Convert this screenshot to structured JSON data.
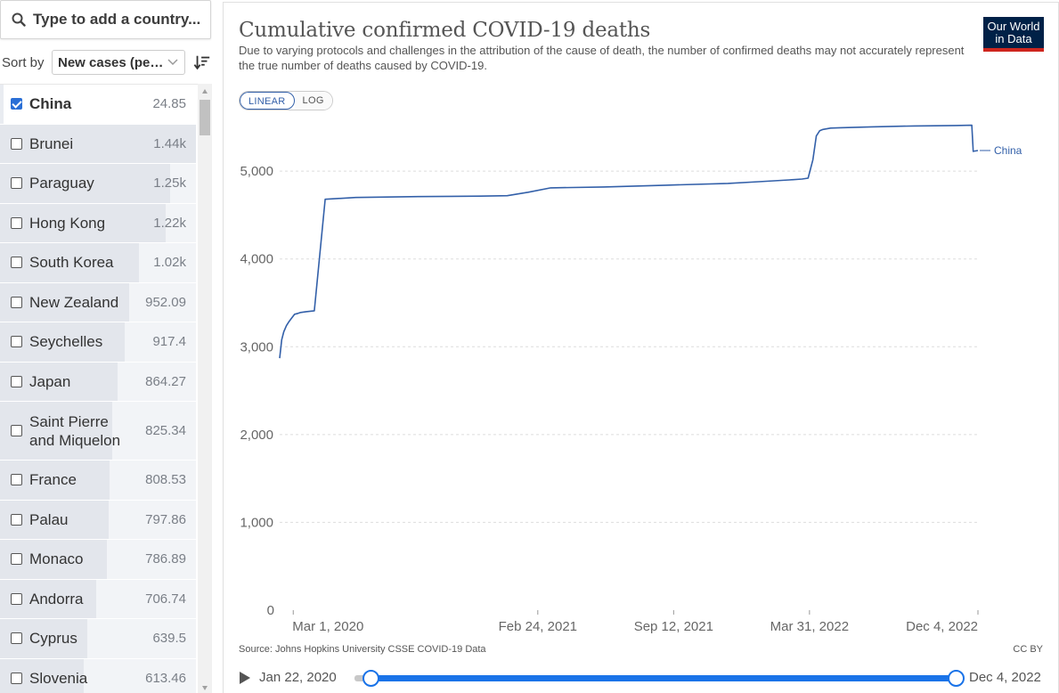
{
  "search": {
    "placeholder": "Type to add a country..."
  },
  "sort": {
    "label": "Sort by",
    "selected": "New cases (pe…"
  },
  "countries": [
    {
      "name": "China",
      "value": "24.85",
      "share": 0.0172,
      "checked": true
    },
    {
      "name": "Brunei",
      "value": "1.44k",
      "share": 1.0,
      "checked": false
    },
    {
      "name": "Paraguay",
      "value": "1.25k",
      "share": 0.868,
      "checked": false
    },
    {
      "name": "Hong Kong",
      "value": "1.22k",
      "share": 0.847,
      "checked": false
    },
    {
      "name": "South Korea",
      "value": "1.02k",
      "share": 0.708,
      "checked": false
    },
    {
      "name": "New Zealand",
      "value": "952.09",
      "share": 0.661,
      "checked": false
    },
    {
      "name": "Seychelles",
      "value": "917.4",
      "share": 0.637,
      "checked": false
    },
    {
      "name": "Japan",
      "value": "864.27",
      "share": 0.6,
      "checked": false
    },
    {
      "name": "Saint Pierre and Miquelon",
      "value": "825.34",
      "share": 0.573,
      "checked": false
    },
    {
      "name": "France",
      "value": "808.53",
      "share": 0.561,
      "checked": false
    },
    {
      "name": "Palau",
      "value": "797.86",
      "share": 0.554,
      "checked": false
    },
    {
      "name": "Monaco",
      "value": "786.89",
      "share": 0.546,
      "checked": false
    },
    {
      "name": "Andorra",
      "value": "706.74",
      "share": 0.491,
      "checked": false
    },
    {
      "name": "Cyprus",
      "value": "639.5",
      "share": 0.444,
      "checked": false
    },
    {
      "name": "Slovenia",
      "value": "613.46",
      "share": 0.426,
      "checked": false
    }
  ],
  "chart": {
    "title": "Cumulative confirmed COVID-19 deaths",
    "subtitle": "Due to varying protocols and challenges in the attribution of the cause of death, the number of confirmed deaths may not accurately represent the true number of deaths caused by COVID-19.",
    "logo_line1": "Our World",
    "logo_line2": "in Data",
    "scale_linear": "LINEAR",
    "scale_log": "LOG",
    "source": "Source: Johns Hopkins University CSSE COVID-19 Data",
    "license": "CC BY"
  },
  "chart_data": {
    "type": "line",
    "title": "Cumulative confirmed COVID-19 deaths",
    "xlabel": "",
    "ylabel": "",
    "ylim": [
      0,
      5600
    ],
    "yticks": [
      0,
      1000,
      2000,
      3000,
      4000,
      5000
    ],
    "ytick_labels": [
      "0",
      "1,000",
      "2,000",
      "3,000",
      "4,000",
      "5,000"
    ],
    "xlim": [
      "2020-02-10",
      "2022-12-04"
    ],
    "xticks": [
      "2020-03-01",
      "2021-02-24",
      "2021-09-12",
      "2022-03-31",
      "2022-12-04"
    ],
    "xtick_labels": [
      "Mar 1, 2020",
      "Feb 24, 2021",
      "Sep 12, 2021",
      "Mar 31, 2022",
      "Dec 4, 2022"
    ],
    "grid": true,
    "series": [
      {
        "name": "China",
        "color": "#3360a9",
        "x": [
          "2020-02-10",
          "2020-02-13",
          "2020-02-16",
          "2020-02-20",
          "2020-02-24",
          "2020-02-28",
          "2020-03-03",
          "2020-03-08",
          "2020-03-12",
          "2020-03-20",
          "2020-04-01",
          "2020-04-17",
          "2020-06-01",
          "2020-09-01",
          "2020-12-01",
          "2021-01-10",
          "2021-01-25",
          "2021-02-10",
          "2021-03-15",
          "2021-06-01",
          "2021-09-01",
          "2021-12-01",
          "2022-01-15",
          "2022-03-01",
          "2022-03-20",
          "2022-03-29",
          "2022-04-05",
          "2022-04-10",
          "2022-04-15",
          "2022-04-20",
          "2022-05-01",
          "2022-05-15",
          "2022-07-01",
          "2022-09-01",
          "2022-11-01",
          "2022-11-25",
          "2022-11-27",
          "2022-11-30",
          "2022-12-04"
        ],
        "y": [
          2870,
          3080,
          3170,
          3240,
          3290,
          3330,
          3370,
          3380,
          3390,
          3400,
          3410,
          4680,
          4700,
          4710,
          4715,
          4720,
          4740,
          4760,
          4810,
          4820,
          4840,
          4860,
          4880,
          4900,
          4910,
          4920,
          5130,
          5400,
          5460,
          5475,
          5490,
          5495,
          5505,
          5515,
          5520,
          5523,
          5226,
          5230,
          5235
        ]
      }
    ],
    "series_label": "China"
  },
  "timeline": {
    "start": "Jan 22, 2020",
    "end": "Dec 4, 2022",
    "start_frac": 0.027,
    "end_frac": 1.0
  }
}
